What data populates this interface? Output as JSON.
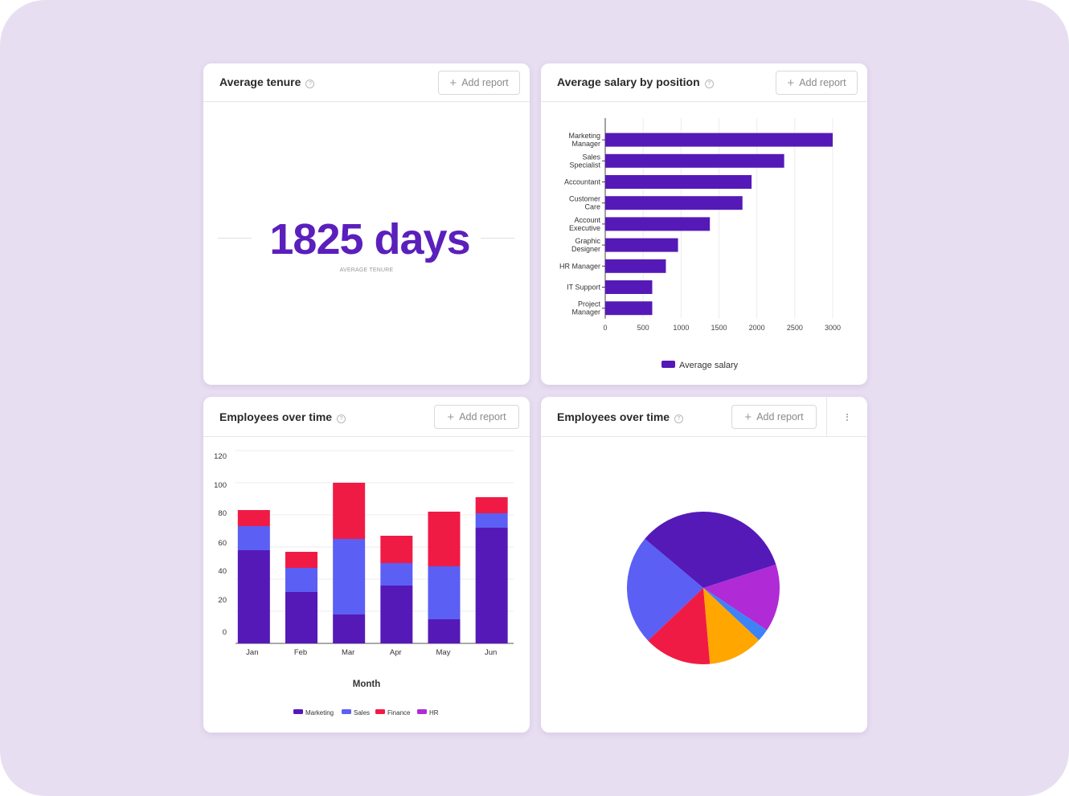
{
  "cards": {
    "tenure": {
      "title": "Average tenure",
      "add_label": "Add report",
      "value": "1825 days",
      "caption": "AVERAGE TENURE"
    },
    "salary": {
      "title": "Average salary by position",
      "add_label": "Add report"
    },
    "employees_bar": {
      "title": "Employees over time",
      "add_label": "Add report"
    },
    "employees_pie": {
      "title": "Employees over time",
      "add_label": "Add report"
    }
  },
  "colors": {
    "accent": "#5b1fbc",
    "marketing": "#5519b8",
    "sales": "#5b5ff4",
    "finance": "#f01b45",
    "hr": "#b02ad6",
    "orange": "#ffa600",
    "blue": "#3d82f6"
  },
  "chart_data": [
    {
      "type": "bar",
      "orientation": "horizontal",
      "categories": [
        [
          "Marketing",
          "Manager"
        ],
        [
          "Sales",
          "Specialist"
        ],
        [
          "Accountant"
        ],
        [
          "Customer",
          "Care"
        ],
        [
          "Account",
          "Executive"
        ],
        [
          "Graphic",
          "Designer"
        ],
        [
          "HR Manager"
        ],
        [
          "IT Support"
        ],
        [
          "Project",
          "Manager"
        ]
      ],
      "series": [
        {
          "name": "Average salary",
          "values": [
            3000,
            2360,
            1930,
            1810,
            1380,
            960,
            800,
            620,
            620
          ]
        }
      ],
      "xticks": [
        0,
        500,
        1000,
        1500,
        2000,
        2500,
        3000
      ],
      "xlim": [
        0,
        3000
      ],
      "legend": "bottom"
    },
    {
      "type": "bar",
      "stacked": true,
      "categories": [
        "Jan",
        "Feb",
        "Mar",
        "Apr",
        "May",
        "Jun"
      ],
      "series": [
        {
          "name": "Marketing",
          "values": [
            58,
            32,
            18,
            36,
            15,
            72
          ]
        },
        {
          "name": "Sales",
          "values": [
            15,
            15,
            47,
            14,
            33,
            9
          ]
        },
        {
          "name": "Finance",
          "values": [
            10,
            10,
            35,
            17,
            34,
            10
          ]
        },
        {
          "name": "HR",
          "values": [
            0,
            0,
            0,
            0,
            0,
            0
          ]
        }
      ],
      "yticks": [
        0,
        20,
        40,
        60,
        80,
        100,
        120
      ],
      "ylim": [
        0,
        120
      ],
      "xlabel": "Month",
      "legend": "bottom"
    },
    {
      "type": "pie",
      "values": [
        38,
        16,
        3,
        13,
        16,
        26
      ],
      "colors": [
        "#5519b8",
        "#b02ad6",
        "#3d82f6",
        "#ffa600",
        "#f01b45",
        "#5b5ff4"
      ],
      "legend": "none"
    }
  ]
}
